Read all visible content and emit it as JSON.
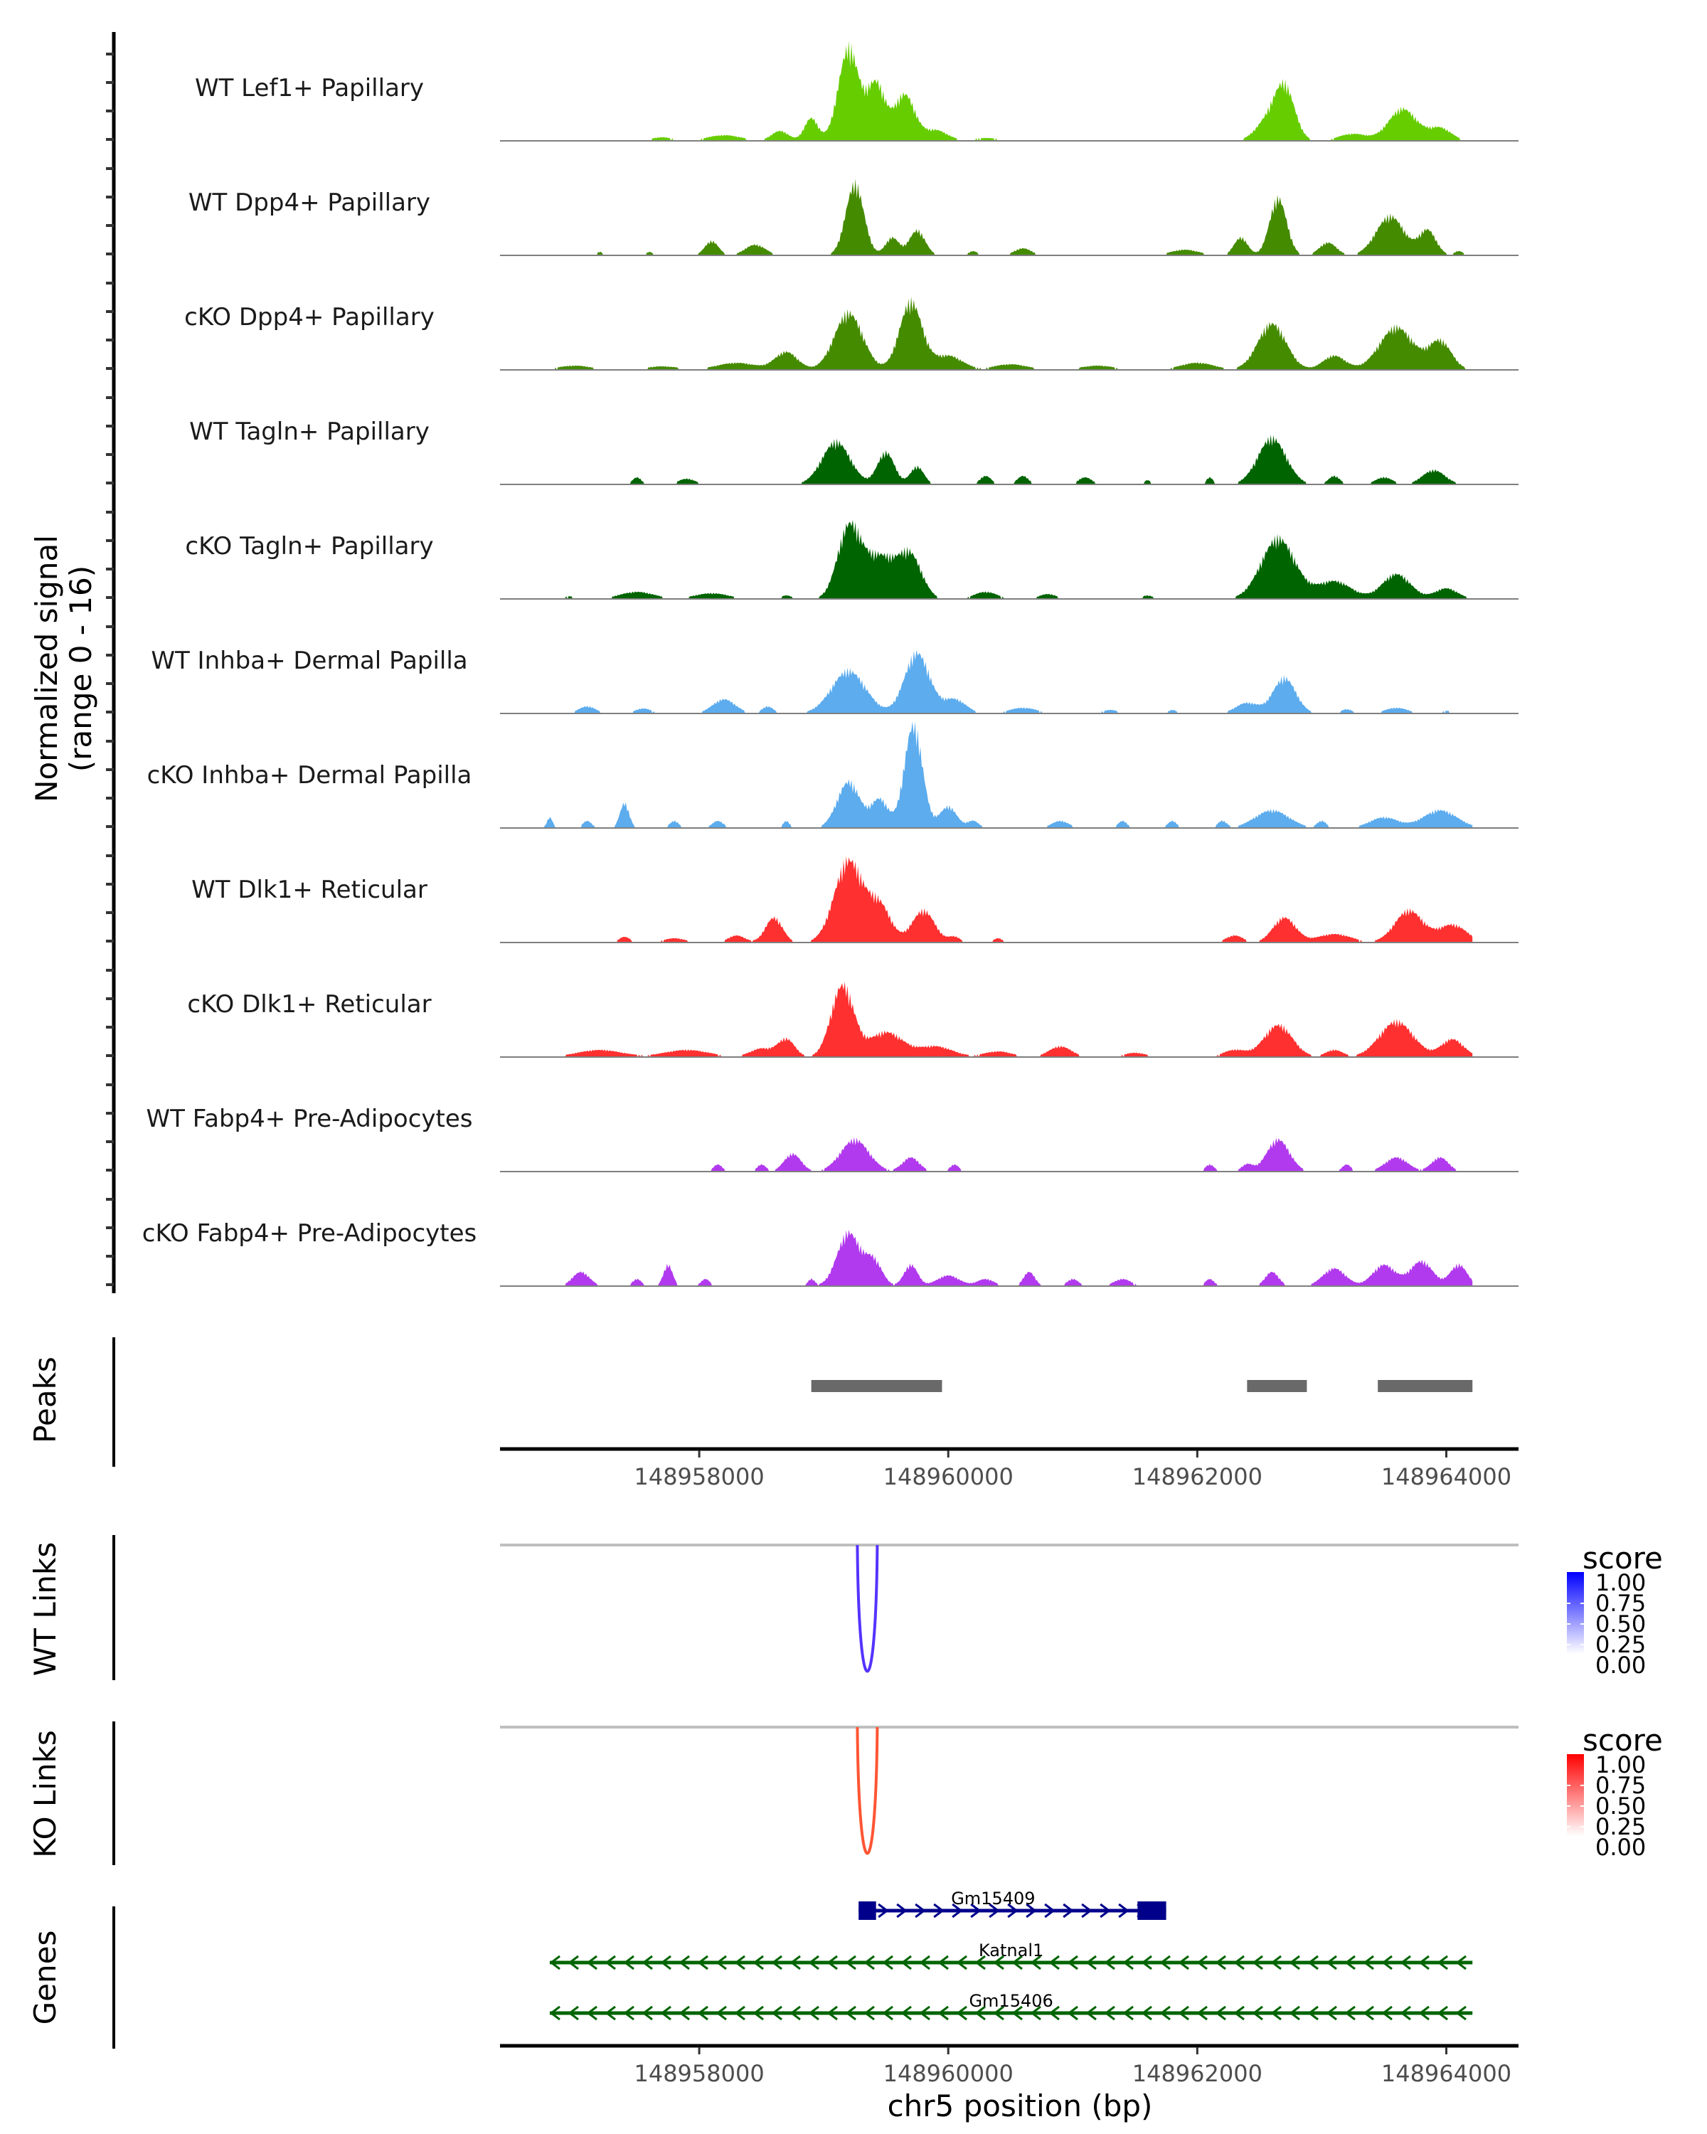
{
  "chart_data": {
    "type": "area",
    "title": "",
    "coverage": {
      "ylabel_line1": "Normalized signal",
      "ylabel_line2": "(range 0 - 16)",
      "ylim": [
        0,
        16
      ],
      "tracks": [
        {
          "label": "WT Lef1+ Papillary",
          "color": "#66CD00",
          "bumps": [
            [
              148957300,
              0.3,
              150
            ],
            [
              148957700,
              0.5,
              200
            ],
            [
              148958200,
              0.8,
              300
            ],
            [
              148958650,
              1.4,
              150
            ],
            [
              148958900,
              3.2,
              120
            ],
            [
              148959200,
              13.0,
              180
            ],
            [
              148959420,
              8.0,
              160
            ],
            [
              148959650,
              6.5,
              180
            ],
            [
              148959900,
              1.5,
              200
            ],
            [
              148960300,
              0.4,
              300
            ],
            [
              148961000,
              0.3,
              300
            ],
            [
              148962550,
              2.4,
              200
            ],
            [
              148962700,
              7.5,
              180
            ],
            [
              148963250,
              1.0,
              250
            ],
            [
              148963650,
              4.5,
              250
            ],
            [
              148963950,
              1.8,
              200
            ]
          ]
        },
        {
          "label": "WT Dpp4+ Papillary",
          "color": "#458B00",
          "bumps": [
            [
              148957200,
              0.5,
              60
            ],
            [
              148957600,
              0.5,
              60
            ],
            [
              148958100,
              2.0,
              120
            ],
            [
              148958450,
              1.5,
              180
            ],
            [
              148959250,
              10.0,
              160
            ],
            [
              148959550,
              2.5,
              120
            ],
            [
              148959750,
              3.5,
              140
            ],
            [
              148960200,
              0.6,
              80
            ],
            [
              148960600,
              1.0,
              150
            ],
            [
              148961900,
              0.8,
              250
            ],
            [
              148962350,
              2.5,
              120
            ],
            [
              148962650,
              8.0,
              150
            ],
            [
              148963050,
              1.8,
              150
            ],
            [
              148963550,
              5.5,
              250
            ],
            [
              148963850,
              3.5,
              150
            ],
            [
              148964100,
              0.6,
              80
            ]
          ]
        },
        {
          "label": "cKO Dpp4+ Papillary",
          "color": "#458B00",
          "bumps": [
            [
              148957000,
              0.6,
              300
            ],
            [
              148957700,
              0.5,
              300
            ],
            [
              148958300,
              1.0,
              350
            ],
            [
              148958700,
              2.5,
              200
            ],
            [
              148959200,
              8.0,
              250
            ],
            [
              148959700,
              9.5,
              200
            ],
            [
              148960000,
              2.0,
              250
            ],
            [
              148960500,
              0.8,
              300
            ],
            [
              148961200,
              0.6,
              300
            ],
            [
              148962000,
              1.0,
              300
            ],
            [
              148962600,
              6.5,
              250
            ],
            [
              148963100,
              2.0,
              200
            ],
            [
              148963600,
              6.0,
              300
            ],
            [
              148963950,
              4.0,
              200
            ]
          ]
        },
        {
          "label": "WT Tagln+ Papillary",
          "color": "#006400",
          "bumps": [
            [
              148957500,
              1.0,
              80
            ],
            [
              148957900,
              0.8,
              150
            ],
            [
              148959100,
              6.0,
              250
            ],
            [
              148959500,
              4.5,
              150
            ],
            [
              148959750,
              2.5,
              120
            ],
            [
              148960300,
              1.2,
              100
            ],
            [
              148960600,
              1.2,
              100
            ],
            [
              148961100,
              1.0,
              120
            ],
            [
              148961600,
              0.6,
              60
            ],
            [
              148962100,
              1.0,
              60
            ],
            [
              148962600,
              6.5,
              250
            ],
            [
              148963100,
              1.2,
              100
            ],
            [
              148963500,
              1.0,
              150
            ],
            [
              148963900,
              2.0,
              200
            ]
          ]
        },
        {
          "label": "cKO Tagln+ Papillary",
          "color": "#006400",
          "bumps": [
            [
              148956950,
              0.4,
              100
            ],
            [
              148957500,
              1.0,
              300
            ],
            [
              148958100,
              0.8,
              300
            ],
            [
              148958700,
              0.5,
              100
            ],
            [
              148959200,
              9.5,
              200
            ],
            [
              148959450,
              6.0,
              300
            ],
            [
              148959700,
              5.5,
              200
            ],
            [
              148960300,
              1.0,
              200
            ],
            [
              148960800,
              0.7,
              150
            ],
            [
              148961600,
              0.5,
              100
            ],
            [
              148962650,
              8.5,
              300
            ],
            [
              148963100,
              2.5,
              300
            ],
            [
              148963600,
              3.5,
              250
            ],
            [
              148964000,
              1.5,
              200
            ]
          ]
        },
        {
          "label": "WT Inhba+ Dermal Papilla",
          "color": "#5CACEE",
          "bumps": [
            [
              148957100,
              1.0,
              150
            ],
            [
              148957550,
              0.7,
              150
            ],
            [
              148958200,
              2.0,
              200
            ],
            [
              148958550,
              1.0,
              100
            ],
            [
              148959200,
              6.0,
              300
            ],
            [
              148959750,
              8.5,
              220
            ],
            [
              148960050,
              2.0,
              200
            ],
            [
              148960600,
              0.8,
              250
            ],
            [
              148961300,
              0.5,
              150
            ],
            [
              148961800,
              0.5,
              80
            ],
            [
              148962400,
              1.5,
              200
            ],
            [
              148962700,
              5.0,
              200
            ],
            [
              148963200,
              0.6,
              100
            ],
            [
              148963600,
              0.8,
              200
            ],
            [
              148964000,
              0.4,
              100
            ]
          ]
        },
        {
          "label": "cKO Inhba+ Dermal Papilla",
          "color": "#5CACEE",
          "bumps": [
            [
              148956800,
              1.5,
              50
            ],
            [
              148957100,
              1.0,
              80
            ],
            [
              148957400,
              3.5,
              80
            ],
            [
              148957800,
              1.0,
              80
            ],
            [
              148958150,
              1.0,
              100
            ],
            [
              148958700,
              1.0,
              60
            ],
            [
              148959200,
              6.5,
              200
            ],
            [
              148959450,
              4.0,
              150
            ],
            [
              148959720,
              14.5,
              160
            ],
            [
              148960000,
              3.0,
              150
            ],
            [
              148960200,
              1.0,
              100
            ],
            [
              148960900,
              1.0,
              150
            ],
            [
              148961400,
              1.0,
              80
            ],
            [
              148961800,
              1.0,
              80
            ],
            [
              148962200,
              1.0,
              80
            ],
            [
              148962600,
              2.5,
              300
            ],
            [
              148963000,
              1.0,
              80
            ],
            [
              148963500,
              1.5,
              250
            ],
            [
              148963950,
              2.5,
              300
            ]
          ]
        },
        {
          "label": "WT Dlk1+ Reticular",
          "color": "#FF3030",
          "bumps": [
            [
              148957400,
              0.8,
              100
            ],
            [
              148957800,
              0.6,
              200
            ],
            [
              148958300,
              1.0,
              150
            ],
            [
              148958600,
              3.5,
              150
            ],
            [
              148959200,
              11.5,
              250
            ],
            [
              148959450,
              5.0,
              200
            ],
            [
              148959800,
              4.5,
              200
            ],
            [
              148960050,
              0.8,
              100
            ],
            [
              148960400,
              0.6,
              80
            ],
            [
              148962300,
              1.0,
              150
            ],
            [
              148962700,
              3.5,
              200
            ],
            [
              148963100,
              1.2,
              300
            ],
            [
              148963700,
              4.5,
              250
            ],
            [
              148964050,
              2.5,
              250
            ]
          ]
        },
        {
          "label": "cKO Dlk1+ Reticular",
          "color": "#FF3030",
          "bumps": [
            [
              148957200,
              1.0,
              400
            ],
            [
              148957900,
              1.0,
              400
            ],
            [
              148958500,
              1.2,
              200
            ],
            [
              148958700,
              2.5,
              150
            ],
            [
              148959150,
              10.0,
              200
            ],
            [
              148959500,
              3.5,
              300
            ],
            [
              148959900,
              1.5,
              300
            ],
            [
              148960400,
              0.8,
              250
            ],
            [
              148960900,
              1.5,
              200
            ],
            [
              148961500,
              0.6,
              200
            ],
            [
              148962300,
              1.0,
              200
            ],
            [
              148962650,
              4.5,
              250
            ],
            [
              148963100,
              1.0,
              150
            ],
            [
              148963600,
              5.0,
              300
            ],
            [
              148964050,
              2.5,
              200
            ]
          ]
        },
        {
          "label": "WT Fabp4+ Pre-Adipocytes",
          "color": "#B23AEE",
          "bumps": [
            [
              148958150,
              1.0,
              80
            ],
            [
              148958500,
              1.0,
              80
            ],
            [
              148958750,
              2.5,
              150
            ],
            [
              148959250,
              4.5,
              250
            ],
            [
              148959700,
              2.0,
              150
            ],
            [
              148960050,
              1.0,
              80
            ],
            [
              148962100,
              1.0,
              80
            ],
            [
              148962400,
              1.0,
              100
            ],
            [
              148962650,
              4.5,
              200
            ],
            [
              148963200,
              1.0,
              80
            ],
            [
              148963600,
              2.0,
              200
            ],
            [
              148963950,
              2.0,
              150
            ]
          ]
        },
        {
          "label": "cKO Fabp4+ Pre-Adipocytes",
          "color": "#B23AEE",
          "bumps": [
            [
              148957050,
              2.0,
              150
            ],
            [
              148957500,
              1.0,
              80
            ],
            [
              148957750,
              3.0,
              80
            ],
            [
              148958050,
              1.0,
              80
            ],
            [
              148958900,
              1.0,
              60
            ],
            [
              148959200,
              7.5,
              200
            ],
            [
              148959400,
              3.5,
              150
            ],
            [
              148959700,
              3.0,
              120
            ],
            [
              148960000,
              1.5,
              200
            ],
            [
              148960300,
              1.0,
              150
            ],
            [
              148960650,
              2.0,
              100
            ],
            [
              148961000,
              1.0,
              100
            ],
            [
              148961400,
              1.0,
              150
            ],
            [
              148962100,
              1.0,
              80
            ],
            [
              148962600,
              2.0,
              120
            ],
            [
              148963100,
              2.5,
              200
            ],
            [
              148963500,
              3.0,
              200
            ],
            [
              148963800,
              3.5,
              200
            ],
            [
              148964100,
              3.0,
              150
            ]
          ]
        }
      ]
    },
    "peaks": {
      "title": "Peaks",
      "color": "#696969",
      "regions": [
        [
          148958900,
          148959950
        ],
        [
          148962400,
          148962880
        ],
        [
          148963450,
          148964210
        ]
      ]
    },
    "x_axis": {
      "xlabel": "chr5 position (bp)",
      "xlim": [
        148956400,
        148964580
      ],
      "ticks": [
        148958000,
        148960000,
        148962000,
        148964000
      ],
      "tick_labels": [
        "148958000",
        "148960000",
        "148962000",
        "148964000"
      ]
    },
    "links": [
      {
        "title": "WT Links",
        "color": "#5533FF",
        "legend_low": "#FFFFFF",
        "legend_high": "#0000FF",
        "arcs": [
          {
            "start": 148959270,
            "end": 148959430,
            "score": 0.8
          }
        ]
      },
      {
        "title": "KO Links",
        "color": "#FF5533",
        "legend_low": "#FFFFFF",
        "legend_high": "#FF0000",
        "arcs": [
          {
            "start": 148959270,
            "end": 148959430,
            "score": 0.8
          }
        ]
      }
    ],
    "legend": {
      "title": "score",
      "ticks": [
        "1.00",
        "0.75",
        "0.50",
        "0.25",
        "0.00"
      ],
      "range": [
        0,
        1
      ]
    },
    "genes": {
      "title": "Genes",
      "items": [
        {
          "name": "Gm15409",
          "start": 148959280,
          "end": 148961750,
          "strand": "+",
          "color": "#00008B",
          "exons": [
            [
              148959280,
              148959420
            ],
            [
              148961520,
              148961750
            ]
          ]
        },
        {
          "name": "Katnal1",
          "start": 148956800,
          "end": 148964210,
          "strand": "-",
          "color": "#006400",
          "exons": []
        },
        {
          "name": "Gm15406",
          "start": 148956800,
          "end": 148964210,
          "strand": "-",
          "color": "#006400",
          "exons": []
        }
      ]
    }
  }
}
